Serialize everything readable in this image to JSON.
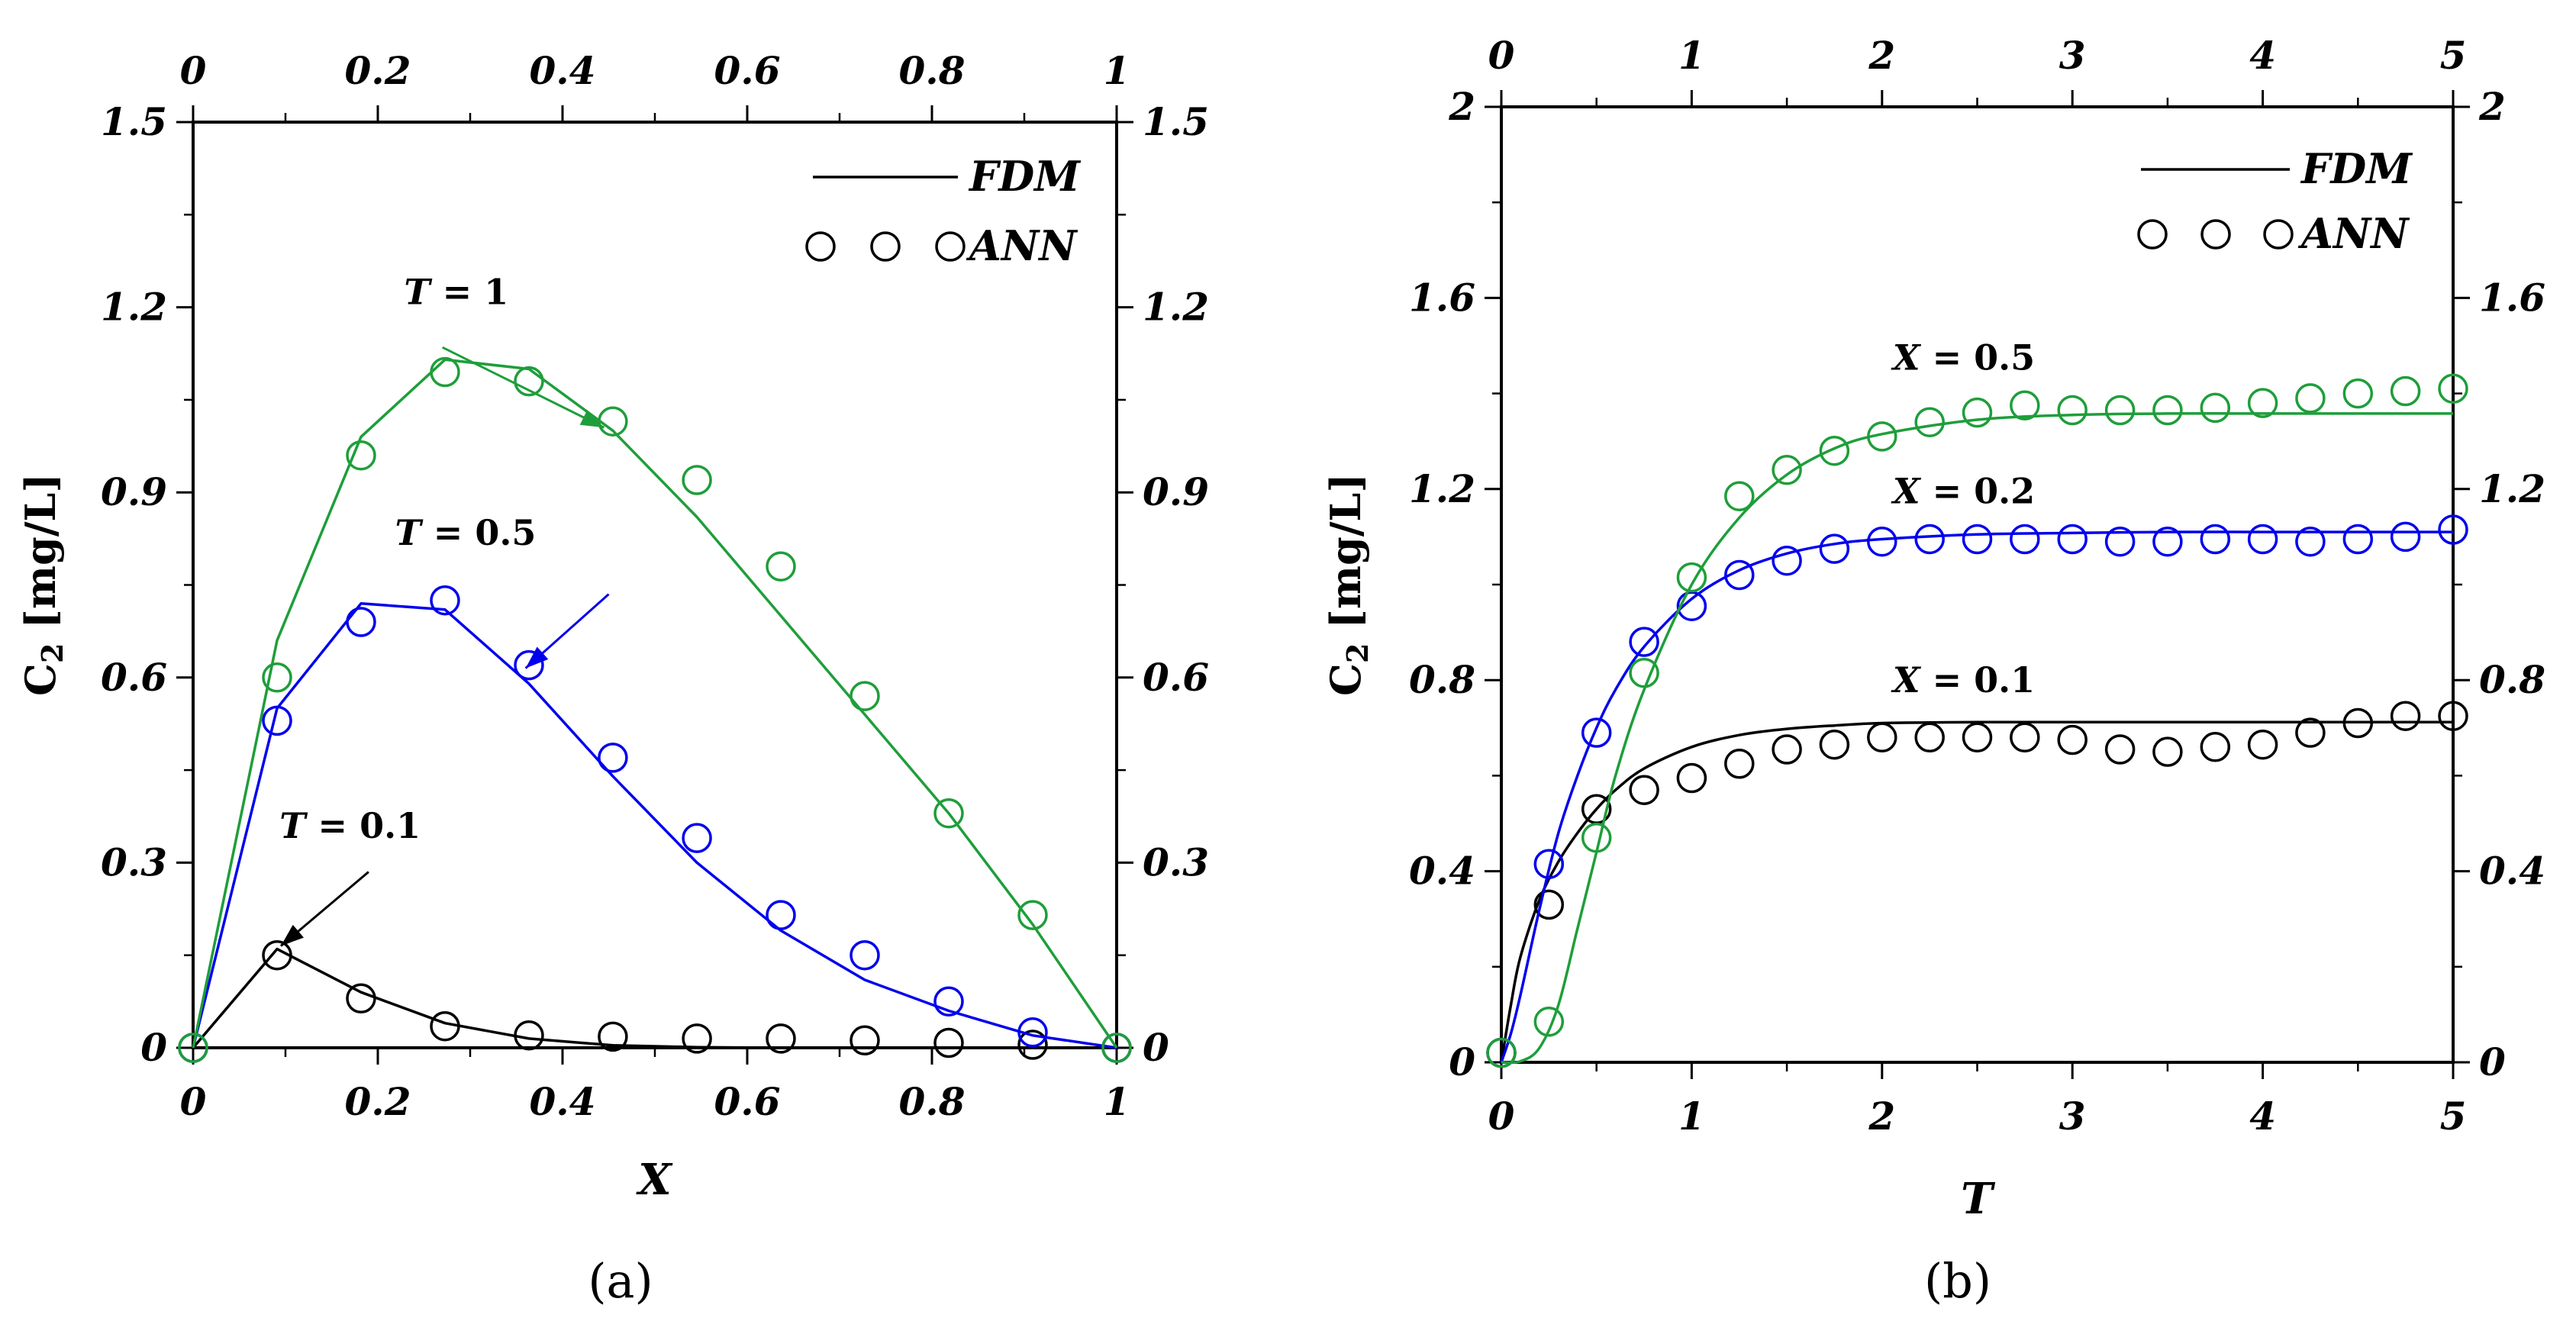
{
  "chart_data": [
    {
      "type": "line",
      "panel": "(a)",
      "xlabel": "X",
      "ylabel": "C",
      "ylabel_sub": "2",
      "ylabel_unit": " [mg/L]",
      "xlim": [
        0,
        1
      ],
      "ylim": [
        0,
        1.5
      ],
      "xticks": [
        0,
        0.2,
        0.4,
        0.6,
        0.8,
        1
      ],
      "xtick_labels": [
        "0",
        "0.2",
        "0.4",
        "0.6",
        "0.8",
        "1"
      ],
      "yticks": [
        0,
        0.3,
        0.6,
        0.9,
        1.2,
        1.5
      ],
      "ytick_labels": [
        "0",
        "0.3",
        "0.6",
        "0.9",
        "1.2",
        "1.5"
      ],
      "legend": {
        "position": "top-right",
        "line_label": "FDM",
        "marker_label": "ANN"
      },
      "series": [
        {
          "name": "T = 0.1",
          "color": "#000000",
          "fdm_x": [
            0,
            0.0909,
            0.1818,
            0.2727,
            0.3636,
            0.4545,
            0.5455,
            0.6364,
            0.7273,
            0.8182,
            0.9091,
            1
          ],
          "fdm_y": [
            0,
            0.16,
            0.09,
            0.04,
            0.015,
            0.004,
            0.001,
            0,
            0,
            0,
            0,
            0
          ],
          "ann_x": [
            0,
            0.0909,
            0.1818,
            0.2727,
            0.3636,
            0.4545,
            0.5455,
            0.6364,
            0.7273,
            0.8182,
            0.9091,
            1
          ],
          "ann_y": [
            0,
            0.15,
            0.08,
            0.035,
            0.02,
            0.018,
            0.015,
            0.015,
            0.012,
            0.008,
            0.005,
            0
          ]
        },
        {
          "name": "T = 0.5",
          "color": "#0000ee",
          "fdm_x": [
            0,
            0.0909,
            0.1818,
            0.2727,
            0.3636,
            0.4545,
            0.5455,
            0.6364,
            0.7273,
            0.8182,
            0.9091,
            1
          ],
          "fdm_y": [
            0,
            0.55,
            0.72,
            0.71,
            0.59,
            0.44,
            0.3,
            0.19,
            0.11,
            0.06,
            0.02,
            0
          ],
          "ann_x": [
            0,
            0.0909,
            0.1818,
            0.2727,
            0.3636,
            0.4545,
            0.5455,
            0.6364,
            0.7273,
            0.8182,
            0.9091,
            1
          ],
          "ann_y": [
            0,
            0.53,
            0.69,
            0.725,
            0.62,
            0.47,
            0.34,
            0.215,
            0.15,
            0.075,
            0.025,
            0
          ]
        },
        {
          "name": "T = 1",
          "color": "#1e9e3a",
          "fdm_x": [
            0,
            0.0909,
            0.1818,
            0.2727,
            0.3636,
            0.4545,
            0.5455,
            0.6364,
            0.7273,
            0.8182,
            0.9091,
            1
          ],
          "fdm_y": [
            0,
            0.66,
            0.99,
            1.115,
            1.1,
            1.0,
            0.86,
            0.7,
            0.54,
            0.38,
            0.2,
            0
          ],
          "ann_x": [
            0,
            0.0909,
            0.1818,
            0.2727,
            0.3636,
            0.4545,
            0.5455,
            0.6364,
            0.7273,
            0.8182,
            0.9091,
            1
          ],
          "ann_y": [
            0,
            0.6,
            0.96,
            1.095,
            1.08,
            1.015,
            0.92,
            0.78,
            0.57,
            0.38,
            0.215,
            0
          ]
        }
      ],
      "annotations": [
        {
          "var": "T",
          "value": "1",
          "color": "#1e9e3a",
          "text_at": [
            0.285,
            1.205
          ],
          "arrow_from": [
            0.27,
            1.135
          ],
          "arrow_to": [
            0.445,
            1.005
          ]
        },
        {
          "var": "T",
          "value": "0.5",
          "color": "#0000ee",
          "text_at": [
            0.295,
            0.815
          ],
          "arrow_from": [
            0.45,
            0.735
          ],
          "arrow_to": [
            0.36,
            0.615
          ]
        },
        {
          "var": "T",
          "value": "0.1",
          "color": "#000000",
          "text_at": [
            0.17,
            0.34
          ],
          "arrow_from": [
            0.19,
            0.285
          ],
          "arrow_to": [
            0.095,
            0.165
          ]
        }
      ]
    },
    {
      "type": "line",
      "panel": "(b)",
      "xlabel": "T",
      "ylabel": "C",
      "ylabel_sub": "2",
      "ylabel_unit": " [mg/L]",
      "xlim": [
        0,
        5
      ],
      "ylim": [
        0,
        2
      ],
      "xticks": [
        0,
        1,
        2,
        3,
        4,
        5
      ],
      "xtick_labels": [
        "0",
        "1",
        "2",
        "3",
        "4",
        "5"
      ],
      "yticks": [
        0,
        0.4,
        0.8,
        1.2,
        1.6,
        2
      ],
      "ytick_labels": [
        "0",
        "0.4",
        "0.8",
        "1.2",
        "1.6",
        "2"
      ],
      "legend": {
        "position": "top-right",
        "line_label": "FDM",
        "marker_label": "ANN"
      },
      "series": [
        {
          "name": "X = 0.1",
          "color": "#000000",
          "fdm_x": [
            0,
            0.05,
            0.1,
            0.2,
            0.3,
            0.4,
            0.5,
            0.6,
            0.75,
            1,
            1.25,
            1.5,
            1.75,
            2,
            2.5,
            3,
            3.5,
            4,
            4.5,
            5
          ],
          "fdm_y": [
            0,
            0.12,
            0.22,
            0.34,
            0.42,
            0.48,
            0.53,
            0.57,
            0.615,
            0.66,
            0.685,
            0.698,
            0.705,
            0.71,
            0.712,
            0.712,
            0.712,
            0.712,
            0.712,
            0.712
          ],
          "ann_x": [
            0,
            0.25,
            0.5,
            0.75,
            1,
            1.25,
            1.5,
            1.75,
            2,
            2.25,
            2.5,
            2.75,
            3,
            3.25,
            3.5,
            3.75,
            4,
            4.25,
            4.5,
            4.75,
            5
          ],
          "ann_y": [
            0.02,
            0.33,
            0.53,
            0.57,
            0.595,
            0.625,
            0.655,
            0.665,
            0.68,
            0.68,
            0.68,
            0.68,
            0.675,
            0.655,
            0.65,
            0.66,
            0.665,
            0.69,
            0.71,
            0.725,
            0.725
          ]
        },
        {
          "name": "X = 0.2",
          "color": "#0000ee",
          "fdm_x": [
            0,
            0.05,
            0.1,
            0.2,
            0.3,
            0.4,
            0.5,
            0.6,
            0.75,
            1,
            1.25,
            1.5,
            1.75,
            2,
            2.5,
            3,
            3.5,
            4,
            4.5,
            5
          ],
          "fdm_y": [
            0,
            0.06,
            0.14,
            0.32,
            0.48,
            0.6,
            0.7,
            0.78,
            0.87,
            0.97,
            1.03,
            1.065,
            1.085,
            1.095,
            1.105,
            1.108,
            1.11,
            1.11,
            1.11,
            1.11
          ],
          "ann_x": [
            0,
            0.25,
            0.5,
            0.75,
            1,
            1.25,
            1.5,
            1.75,
            2,
            2.25,
            2.5,
            2.75,
            3,
            3.25,
            3.5,
            3.75,
            4,
            4.25,
            4.5,
            4.75,
            5
          ],
          "ann_y": [
            0.02,
            0.415,
            0.69,
            0.88,
            0.955,
            1.02,
            1.05,
            1.075,
            1.09,
            1.095,
            1.095,
            1.095,
            1.095,
            1.09,
            1.09,
            1.095,
            1.095,
            1.09,
            1.095,
            1.1,
            1.115
          ]
        },
        {
          "name": "X = 0.5",
          "color": "#1e9e3a",
          "fdm_x": [
            0,
            0.1,
            0.2,
            0.3,
            0.4,
            0.5,
            0.6,
            0.75,
            1,
            1.25,
            1.5,
            1.75,
            2,
            2.5,
            3,
            3.5,
            4,
            4.5,
            5
          ],
          "fdm_y": [
            0,
            0.002,
            0.03,
            0.12,
            0.28,
            0.44,
            0.6,
            0.78,
            1.0,
            1.14,
            1.23,
            1.285,
            1.315,
            1.345,
            1.355,
            1.358,
            1.358,
            1.358,
            1.358
          ],
          "ann_x": [
            0,
            0.25,
            0.5,
            0.75,
            1,
            1.25,
            1.5,
            1.75,
            2,
            2.25,
            2.5,
            2.75,
            3,
            3.25,
            3.5,
            3.75,
            4,
            4.25,
            4.5,
            4.75,
            5
          ],
          "ann_y": [
            0.02,
            0.085,
            0.47,
            0.815,
            1.015,
            1.185,
            1.24,
            1.28,
            1.31,
            1.34,
            1.36,
            1.375,
            1.365,
            1.365,
            1.365,
            1.37,
            1.38,
            1.39,
            1.4,
            1.405,
            1.41
          ]
        }
      ],
      "annotations": [
        {
          "var": "X",
          "value": "0.5",
          "color": "#000000",
          "text_at": [
            2.43,
            1.45
          ]
        },
        {
          "var": "X",
          "value": "0.2",
          "color": "#000000",
          "text_at": [
            2.43,
            1.17
          ]
        },
        {
          "var": "X",
          "value": "0.1",
          "color": "#000000",
          "text_at": [
            2.43,
            0.775
          ]
        }
      ]
    }
  ]
}
